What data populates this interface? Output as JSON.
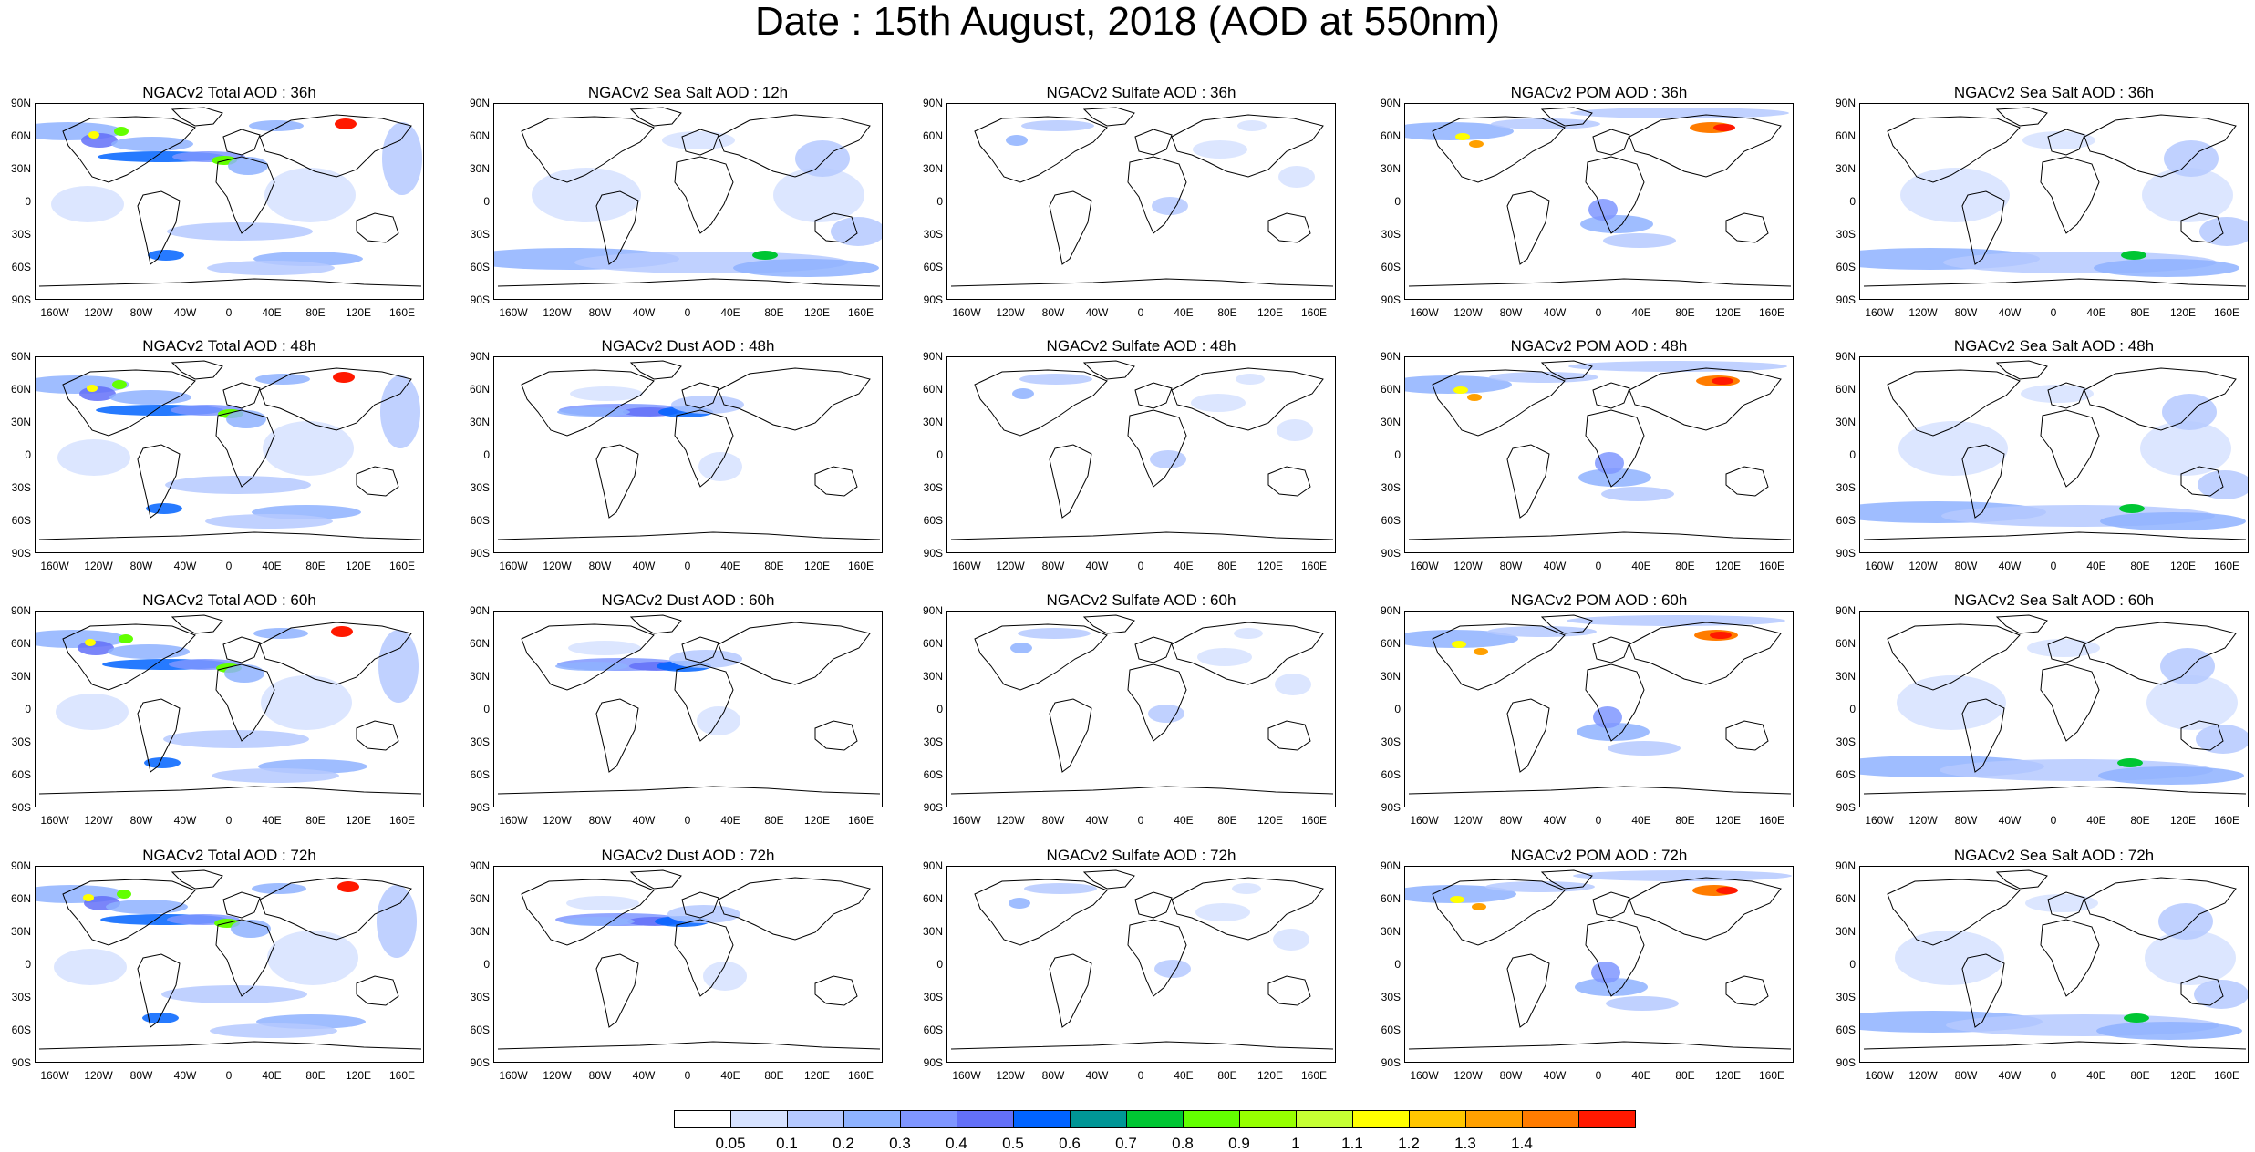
{
  "title": "Date : 15th August, 2018 (AOD at 550nm)",
  "lat_labels": [
    "90N",
    "60N",
    "30N",
    "0",
    "30S",
    "60S",
    "90S"
  ],
  "lon_labels": [
    "160W",
    "120W",
    "80W",
    "40W",
    "0",
    "40E",
    "80E",
    "120E",
    "160E"
  ],
  "panels": [
    [
      "NGACv2 Total AOD : 36h",
      "NGACv2 Sea Salt  AOD : 12h",
      "NGACv2 Sulfate AOD : 36h",
      "NGACv2 POM AOD : 36h",
      "NGACv2 Sea Salt  AOD : 36h"
    ],
    [
      "NGACv2 Total AOD : 48h",
      "NGACv2 Dust AOD : 48h",
      "NGACv2 Sulfate AOD : 48h",
      "NGACv2 POM AOD : 48h",
      "NGACv2 Sea Salt  AOD : 48h"
    ],
    [
      "NGACv2 Total AOD : 60h",
      "NGACv2 Dust AOD : 60h",
      "NGACv2 Sulfate AOD : 60h",
      "NGACv2 POM AOD : 60h",
      "NGACv2 Sea Salt  AOD : 60h"
    ],
    [
      "NGACv2 Total AOD : 72h",
      "NGACv2 Dust AOD : 72h",
      "NGACv2 Sulfate AOD : 72h",
      "NGACv2 POM AOD : 72h",
      "NGACv2 Sea Salt  AOD : 72h"
    ]
  ],
  "colorbar": {
    "labels": [
      "0.05",
      "0.1",
      "0.2",
      "0.3",
      "0.4",
      "0.5",
      "0.6",
      "0.7",
      "0.8",
      "0.9",
      "1",
      "1.1",
      "1.2",
      "1.3",
      "1.4"
    ],
    "colors": [
      "#ffffff",
      "#d6e2ff",
      "#b5c9ff",
      "#8eb2ff",
      "#7f96ff",
      "#6370f8",
      "#0063ff",
      "#009696",
      "#00c633",
      "#63ff00",
      "#96ff00",
      "#c6ff33",
      "#ffff00",
      "#ffc600",
      "#ffa000",
      "#ff7c00",
      "#ff1900"
    ]
  }
}
